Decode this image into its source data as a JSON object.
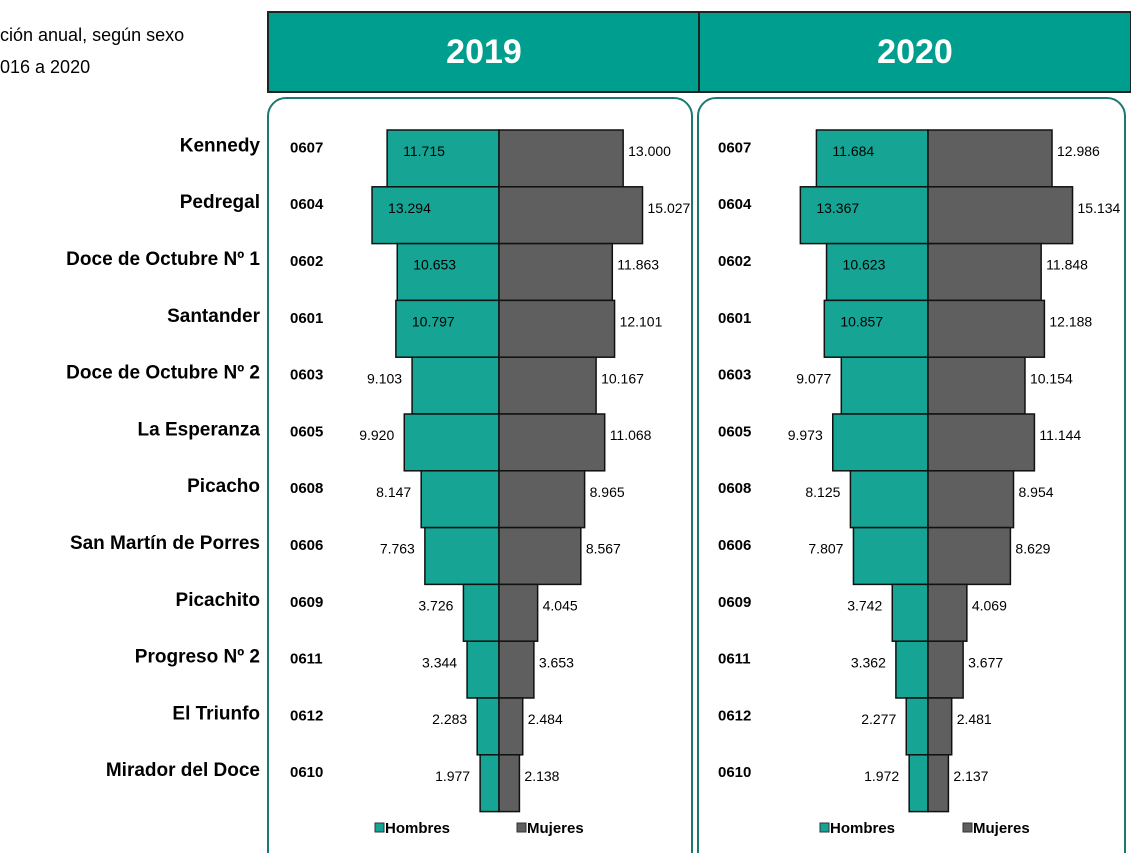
{
  "title_lines": [
    "ción anual, según sexo",
    "016 a 2020"
  ],
  "districts": [
    "Kennedy",
    "Pedregal",
    "Doce de Octubre Nº 1",
    "Santander",
    "Doce de Octubre Nº 2",
    "La Esperanza",
    "Picacho",
    "San Martín de Porres",
    "Picachito",
    "Progreso Nº 2",
    "El Triunfo",
    "Mirador del Doce"
  ],
  "chart_data": [
    {
      "type": "pyramid",
      "title": "2019",
      "categories": [
        "0607",
        "0604",
        "0602",
        "0601",
        "0603",
        "0605",
        "0608",
        "0606",
        "0609",
        "0611",
        "0612",
        "0610"
      ],
      "xlim": [
        -20000,
        20000
      ],
      "series": [
        {
          "name": "Hombres",
          "color": "#16a595",
          "values": [
            11715,
            13294,
            10653,
            10797,
            9103,
            9920,
            8147,
            7763,
            3726,
            3344,
            2283,
            1977
          ],
          "value_labels": [
            "11.715",
            "13.294",
            "10.653",
            "10.797",
            "9.103",
            "9.920",
            "8.147",
            "7.763",
            "3.726",
            "3.344",
            "2.283",
            "1.977"
          ]
        },
        {
          "name": "Mujeres",
          "color": "#5f5f5f",
          "values": [
            13000,
            15027,
            11863,
            12101,
            10167,
            11068,
            8965,
            8567,
            4045,
            3653,
            2484,
            2138
          ],
          "value_labels": [
            "13.000",
            "15.027",
            "11.863",
            "12.101",
            "10.167",
            "11.068",
            "8.965",
            "8.567",
            "4.045",
            "3.653",
            "2.484",
            "2.138"
          ]
        }
      ]
    },
    {
      "type": "pyramid",
      "title": "2020",
      "categories": [
        "0607",
        "0604",
        "0602",
        "0601",
        "0603",
        "0605",
        "0608",
        "0606",
        "0609",
        "0611",
        "0612",
        "0610"
      ],
      "xlim": [
        -20000,
        20000
      ],
      "series": [
        {
          "name": "Hombres",
          "color": "#16a595",
          "values": [
            11684,
            13367,
            10623,
            10857,
            9077,
            9973,
            8125,
            7807,
            3742,
            3362,
            2277,
            1972
          ],
          "value_labels": [
            "11.684",
            "13.367",
            "10.623",
            "10.857",
            "9.077",
            "9.973",
            "8.125",
            "7.807",
            "3.742",
            "3.362",
            "2.277",
            "1.972"
          ]
        },
        {
          "name": "Mujeres",
          "color": "#5f5f5f",
          "values": [
            12986,
            15134,
            11848,
            12188,
            10154,
            11144,
            8954,
            8629,
            4069,
            3677,
            2481,
            2137
          ],
          "value_labels": [
            "12.986",
            "15.134",
            "11.848",
            "12.188",
            "10.154",
            "11.144",
            "8.954",
            "8.629",
            "4.069",
            "3.677",
            "2.481",
            "2.137"
          ]
        }
      ]
    }
  ]
}
